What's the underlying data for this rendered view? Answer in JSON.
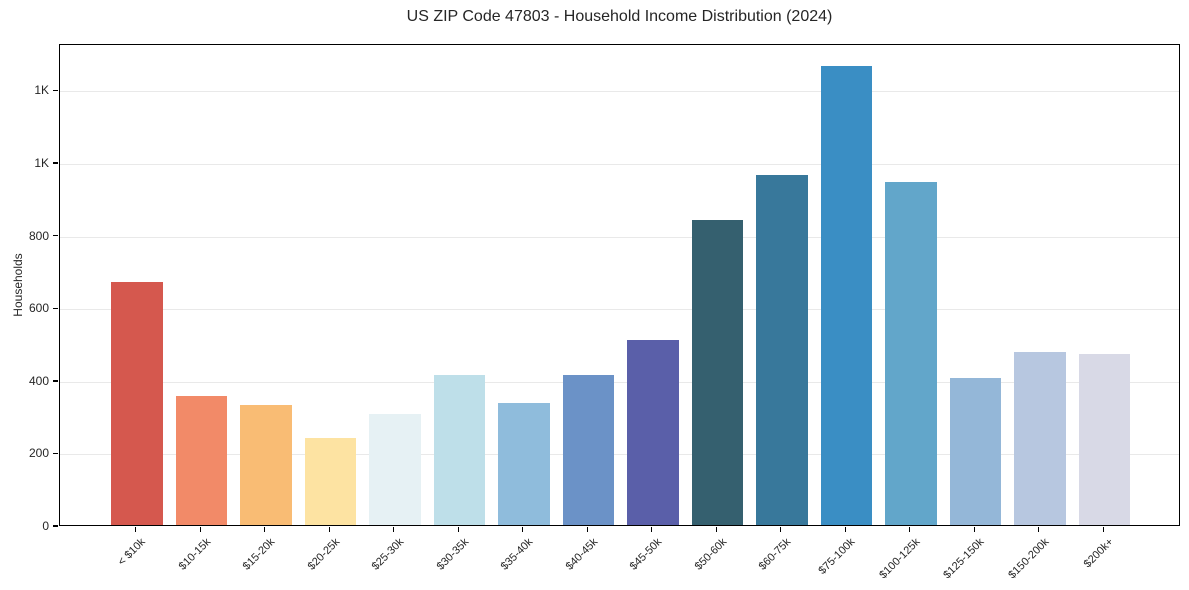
{
  "colors": {
    "background": "#ffffff",
    "grid": "#e9e9e9",
    "spine": "#000000",
    "text": "#262626"
  },
  "chart_data": {
    "type": "bar",
    "title": "US ZIP Code 47803 - Household Income Distribution (2024)",
    "xlabel": "",
    "ylabel": "Households",
    "legend": "none",
    "grid": "horizontal",
    "ylim": [
      0,
      1328
    ],
    "categories": [
      "< $10k",
      "$10-15k",
      "$15-20k",
      "$20-25k",
      "$25-30k",
      "$30-35k",
      "$35-40k",
      "$40-45k",
      "$45-50k",
      "$50-60k",
      "$60-75k",
      "$75-100k",
      "$100-125k",
      "$125-150k",
      "$150-200k",
      "$200k+"
    ],
    "values": [
      670,
      355,
      330,
      240,
      305,
      412,
      335,
      414,
      510,
      840,
      965,
      1265,
      945,
      405,
      477,
      470
    ],
    "bar_colors": [
      "#d5584e",
      "#f28a68",
      "#f9bc74",
      "#fde3a2",
      "#e6f1f4",
      "#bedfe9",
      "#8fbcdc",
      "#6b92c7",
      "#5a5fa9",
      "#35606f",
      "#38789b",
      "#3a8ec4",
      "#62a6ca",
      "#94b7d8",
      "#b7c7e0",
      "#d8d9e6"
    ],
    "yticks": [
      {
        "value": 0,
        "label": "0"
      },
      {
        "value": 200,
        "label": "200"
      },
      {
        "value": 400,
        "label": "400"
      },
      {
        "value": 600,
        "label": "600"
      },
      {
        "value": 800,
        "label": "800"
      },
      {
        "value": 1000,
        "label": "1K"
      },
      {
        "value": 1200,
        "label": "1K"
      }
    ]
  }
}
